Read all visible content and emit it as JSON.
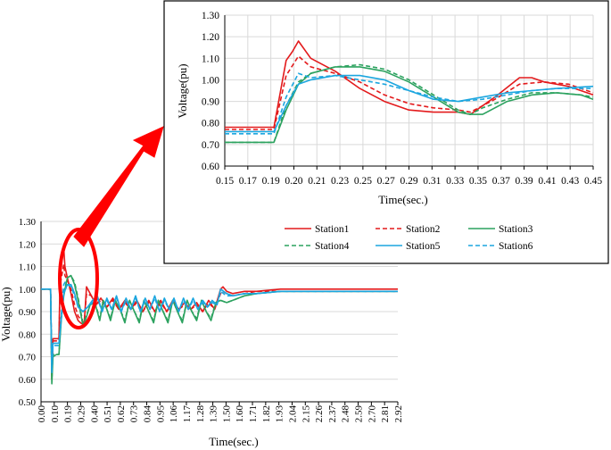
{
  "chart_data": [
    {
      "type": "line",
      "xlabel": "Time(sec.)",
      "ylabel": "Voltage(pu)",
      "xlim": [
        0.0,
        2.98
      ],
      "ylim": [
        0.5,
        1.3
      ],
      "x_tick_labels": [
        "0.00",
        "0.10",
        "0.19",
        "0.29",
        "0.40",
        "0.51",
        "0.62",
        "0.73",
        "0.84",
        "0.95",
        "1.06",
        "1.17",
        "1.28",
        "1.39",
        "1.50",
        "1.60",
        "1.71",
        "1.82",
        "1.93",
        "2.04",
        "2.15",
        "2.26",
        "2.37",
        "2.48",
        "2.59",
        "2.70",
        "2.81",
        "2.92"
      ],
      "y_tick_labels": [
        "0.50",
        "0.60",
        "0.70",
        "0.80",
        "0.90",
        "1.00",
        "1.10",
        "1.20",
        "1.30"
      ],
      "grid": "horizontal",
      "series": [
        {
          "name": "Station1",
          "x": [
            0,
            0.08,
            0.09,
            0.1,
            0.13,
            0.15,
            0.16,
            0.19,
            0.2,
            0.22,
            0.25,
            0.28,
            0.31,
            0.33,
            0.36,
            0.38,
            0.42,
            0.46,
            0.5,
            0.55,
            0.6,
            0.65,
            0.7,
            0.75,
            0.8,
            0.85,
            0.9,
            0.95,
            1.0,
            1.05,
            1.1,
            1.15,
            1.2,
            1.25,
            1.3,
            1.35,
            1.4,
            1.45,
            1.5,
            1.52,
            1.55,
            1.6,
            1.7,
            1.8,
            2.0,
            2.3,
            2.6,
            2.98
          ],
          "y": [
            1.0,
            1.0,
            0.6,
            0.78,
            0.78,
            0.78,
            1.09,
            1.18,
            1.1,
            1.05,
            0.98,
            0.9,
            0.86,
            0.85,
            0.84,
            1.01,
            0.97,
            0.93,
            0.96,
            0.92,
            0.96,
            0.91,
            0.95,
            0.91,
            0.95,
            0.9,
            0.95,
            0.9,
            0.95,
            0.9,
            0.95,
            0.91,
            0.94,
            0.91,
            0.94,
            0.9,
            0.95,
            0.91,
            1.0,
            1.01,
            0.99,
            0.98,
            0.99,
            0.99,
            1.0,
            1.0,
            1.0,
            1.0
          ]
        },
        {
          "name": "Station2",
          "x": [
            0,
            0.08,
            0.09,
            0.1,
            0.13,
            0.15,
            0.16,
            0.19,
            0.2,
            0.22,
            0.25,
            0.28,
            0.31,
            0.34,
            0.36,
            0.38,
            0.42,
            0.46,
            0.5,
            0.55,
            0.6,
            0.65,
            0.7,
            0.75,
            0.8,
            0.85,
            0.9,
            0.95,
            1.0,
            1.05,
            1.1,
            1.15,
            1.2,
            1.25,
            1.3,
            1.35,
            1.4,
            1.45,
            1.5,
            1.52,
            1.55,
            1.6,
            1.7,
            1.8,
            2.0,
            2.3,
            2.6,
            2.98
          ],
          "y": [
            1.0,
            1.0,
            0.62,
            0.77,
            0.77,
            0.77,
            1.02,
            1.11,
            1.06,
            1.04,
            1.0,
            0.93,
            0.88,
            0.86,
            0.85,
            0.98,
            0.97,
            0.93,
            0.95,
            0.92,
            0.95,
            0.91,
            0.94,
            0.91,
            0.94,
            0.9,
            0.94,
            0.9,
            0.94,
            0.9,
            0.94,
            0.91,
            0.93,
            0.91,
            0.93,
            0.9,
            0.94,
            0.91,
            0.98,
            0.99,
            0.98,
            0.97,
            0.98,
            0.99,
            0.99,
            0.99,
            0.99,
            0.99
          ]
        },
        {
          "name": "Station3",
          "x": [
            0,
            0.08,
            0.09,
            0.1,
            0.13,
            0.15,
            0.17,
            0.19,
            0.22,
            0.25,
            0.28,
            0.31,
            0.35,
            0.37,
            0.41,
            0.45,
            0.49,
            0.52,
            0.55,
            0.58,
            0.62,
            0.66,
            0.7,
            0.74,
            0.78,
            0.82,
            0.86,
            0.9,
            0.94,
            0.98,
            1.02,
            1.06,
            1.1,
            1.14,
            1.18,
            1.22,
            1.26,
            1.3,
            1.34,
            1.38,
            1.42,
            1.46,
            1.5,
            1.55,
            1.6,
            1.7,
            1.8,
            2.0,
            2.3,
            2.6,
            2.98
          ],
          "y": [
            1.0,
            1.0,
            0.58,
            0.7,
            0.71,
            0.71,
            0.87,
            0.97,
            1.05,
            1.06,
            1.02,
            0.95,
            0.84,
            0.86,
            0.93,
            0.94,
            0.86,
            0.95,
            0.91,
            0.86,
            0.95,
            0.91,
            0.85,
            0.95,
            0.9,
            0.85,
            0.95,
            0.9,
            0.85,
            0.95,
            0.9,
            0.85,
            0.95,
            0.9,
            0.85,
            0.95,
            0.9,
            0.86,
            0.95,
            0.9,
            0.86,
            0.94,
            0.95,
            0.94,
            0.95,
            0.97,
            0.98,
            0.99,
            0.99,
            0.99,
            0.99
          ]
        },
        {
          "name": "Station4",
          "x": [
            0,
            0.08,
            0.09,
            0.1,
            0.13,
            0.15,
            0.17,
            0.19,
            0.22,
            0.25,
            0.28,
            0.31,
            0.35,
            0.37,
            0.41,
            0.45,
            0.49,
            0.52,
            0.55,
            0.58,
            0.62,
            0.66,
            0.7,
            0.74,
            0.78,
            0.82,
            0.86,
            0.9,
            0.94,
            0.98,
            1.02,
            1.06,
            1.1,
            1.14,
            1.18,
            1.22,
            1.26,
            1.3,
            1.34,
            1.38,
            1.42,
            1.46,
            1.5,
            1.55,
            1.6,
            1.7,
            1.8,
            2.0,
            2.3,
            2.6,
            2.98
          ],
          "y": [
            1.0,
            1.0,
            0.6,
            0.71,
            0.71,
            0.71,
            0.88,
            0.98,
            1.05,
            1.06,
            1.03,
            0.96,
            0.85,
            0.87,
            0.93,
            0.94,
            0.87,
            0.95,
            0.91,
            0.87,
            0.95,
            0.91,
            0.86,
            0.95,
            0.9,
            0.86,
            0.95,
            0.9,
            0.86,
            0.95,
            0.9,
            0.86,
            0.95,
            0.9,
            0.86,
            0.95,
            0.9,
            0.87,
            0.95,
            0.9,
            0.87,
            0.94,
            0.95,
            0.94,
            0.95,
            0.97,
            0.98,
            0.99,
            0.99,
            0.99,
            0.99
          ]
        },
        {
          "name": "Station5",
          "x": [
            0,
            0.08,
            0.09,
            0.1,
            0.13,
            0.15,
            0.17,
            0.19,
            0.22,
            0.25,
            0.28,
            0.31,
            0.35,
            0.39,
            0.43,
            0.47,
            0.51,
            0.55,
            0.59,
            0.63,
            0.67,
            0.71,
            0.75,
            0.79,
            0.83,
            0.87,
            0.91,
            0.95,
            0.99,
            1.03,
            1.07,
            1.11,
            1.15,
            1.19,
            1.23,
            1.27,
            1.31,
            1.35,
            1.39,
            1.43,
            1.47,
            1.5,
            1.55,
            1.6,
            1.7,
            1.8,
            2.0,
            2.3,
            2.6,
            2.98
          ],
          "y": [
            1.0,
            1.0,
            0.64,
            0.76,
            0.76,
            0.76,
            0.87,
            0.98,
            1.02,
            1.02,
            0.98,
            0.92,
            0.9,
            0.92,
            0.95,
            0.97,
            0.9,
            0.96,
            0.91,
            0.97,
            0.9,
            0.96,
            0.91,
            0.97,
            0.9,
            0.96,
            0.91,
            0.97,
            0.9,
            0.96,
            0.91,
            0.96,
            0.9,
            0.96,
            0.91,
            0.96,
            0.91,
            0.95,
            0.92,
            0.95,
            0.93,
            1.0,
            0.98,
            0.97,
            0.98,
            0.98,
            0.99,
            0.99,
            0.99,
            0.99
          ]
        },
        {
          "name": "Station6",
          "x": [
            0,
            0.08,
            0.09,
            0.1,
            0.13,
            0.15,
            0.17,
            0.19,
            0.2,
            0.22,
            0.25,
            0.28,
            0.31,
            0.35,
            0.39,
            0.43,
            0.47,
            0.51,
            0.55,
            0.59,
            0.63,
            0.67,
            0.71,
            0.75,
            0.79,
            0.83,
            0.87,
            0.91,
            0.95,
            0.99,
            1.03,
            1.07,
            1.11,
            1.15,
            1.19,
            1.23,
            1.27,
            1.31,
            1.35,
            1.39,
            1.43,
            1.47,
            1.5,
            1.55,
            1.6,
            1.7,
            1.8,
            2.0,
            2.3,
            2.6,
            2.98
          ],
          "y": [
            1.0,
            1.0,
            0.63,
            0.75,
            0.75,
            0.75,
            0.89,
            1.02,
            1.03,
            1.02,
            1.01,
            0.97,
            0.92,
            0.9,
            0.92,
            0.94,
            0.96,
            0.9,
            0.95,
            0.91,
            0.96,
            0.9,
            0.95,
            0.91,
            0.96,
            0.9,
            0.95,
            0.91,
            0.96,
            0.9,
            0.95,
            0.91,
            0.95,
            0.9,
            0.95,
            0.91,
            0.95,
            0.91,
            0.94,
            0.92,
            0.94,
            0.93,
            0.99,
            0.97,
            0.97,
            0.98,
            0.98,
            0.99,
            0.99,
            0.99,
            0.99
          ]
        }
      ]
    },
    {
      "type": "line",
      "xlabel": "Time(sec.)",
      "ylabel": "Voltage(pu)",
      "xlim": [
        0.15,
        0.45
      ],
      "ylim": [
        0.6,
        1.3
      ],
      "x_tick_labels": [
        "0.15",
        "0.17",
        "0.19",
        "0.20",
        "0.21",
        "0.23",
        "0.25",
        "0.27",
        "0.29",
        "0.31",
        "0.33",
        "0.35",
        "0.37",
        "0.39",
        "0.41",
        "0.43",
        "0.45"
      ],
      "y_tick_labels": [
        "0.60",
        "0.70",
        "0.80",
        "0.90",
        "1.00",
        "1.10",
        "1.20",
        "1.30"
      ],
      "grid": "both",
      "legend_position": "bottom",
      "series": [
        {
          "name": "Station1",
          "x": [
            0.15,
            0.19,
            0.2,
            0.205,
            0.21,
            0.22,
            0.24,
            0.26,
            0.28,
            0.3,
            0.32,
            0.34,
            0.35,
            0.37,
            0.39,
            0.4,
            0.41,
            0.43,
            0.45
          ],
          "y": [
            0.78,
            0.78,
            1.09,
            1.13,
            1.18,
            1.1,
            1.04,
            0.96,
            0.9,
            0.86,
            0.85,
            0.85,
            0.84,
            0.92,
            1.01,
            1.01,
            0.99,
            0.97,
            0.93
          ]
        },
        {
          "name": "Station2",
          "x": [
            0.15,
            0.19,
            0.2,
            0.21,
            0.22,
            0.24,
            0.26,
            0.28,
            0.3,
            0.32,
            0.34,
            0.35,
            0.37,
            0.39,
            0.41,
            0.43,
            0.45
          ],
          "y": [
            0.77,
            0.77,
            1.02,
            1.11,
            1.06,
            1.03,
            0.99,
            0.93,
            0.89,
            0.87,
            0.86,
            0.85,
            0.91,
            0.98,
            0.99,
            0.98,
            0.94
          ]
        },
        {
          "name": "Station3",
          "x": [
            0.15,
            0.19,
            0.2,
            0.21,
            0.22,
            0.24,
            0.26,
            0.28,
            0.3,
            0.32,
            0.34,
            0.35,
            0.36,
            0.38,
            0.4,
            0.42,
            0.44,
            0.45
          ],
          "y": [
            0.71,
            0.71,
            0.86,
            0.98,
            1.03,
            1.06,
            1.06,
            1.04,
            0.99,
            0.92,
            0.85,
            0.84,
            0.84,
            0.9,
            0.93,
            0.94,
            0.93,
            0.91
          ]
        },
        {
          "name": "Station4",
          "x": [
            0.15,
            0.19,
            0.2,
            0.21,
            0.22,
            0.24,
            0.26,
            0.28,
            0.3,
            0.32,
            0.34,
            0.35,
            0.36,
            0.38,
            0.4,
            0.42,
            0.44,
            0.45
          ],
          "y": [
            0.71,
            0.71,
            0.88,
            0.99,
            1.03,
            1.06,
            1.07,
            1.05,
            1.0,
            0.93,
            0.86,
            0.84,
            0.87,
            0.91,
            0.94,
            0.94,
            0.93,
            0.92
          ]
        },
        {
          "name": "Station5",
          "x": [
            0.15,
            0.19,
            0.2,
            0.21,
            0.22,
            0.24,
            0.26,
            0.28,
            0.3,
            0.32,
            0.34,
            0.36,
            0.38,
            0.4,
            0.42,
            0.45
          ],
          "y": [
            0.76,
            0.76,
            0.88,
            0.98,
            1.0,
            1.02,
            1.02,
            1.0,
            0.95,
            0.91,
            0.9,
            0.92,
            0.94,
            0.95,
            0.96,
            0.97
          ]
        },
        {
          "name": "Station6",
          "x": [
            0.15,
            0.19,
            0.2,
            0.21,
            0.22,
            0.24,
            0.26,
            0.28,
            0.3,
            0.32,
            0.34,
            0.36,
            0.38,
            0.4,
            0.42,
            0.45
          ],
          "y": [
            0.75,
            0.75,
            0.92,
            1.03,
            1.01,
            1.02,
            1.0,
            0.98,
            0.95,
            0.92,
            0.9,
            0.91,
            0.93,
            0.95,
            0.96,
            0.96
          ]
        }
      ]
    }
  ],
  "colors": {
    "Station1": "#e31a1c",
    "Station2": "#e31a1c",
    "Station3": "#2ca25f",
    "Station4": "#2ca25f",
    "Station5": "#1ca6df",
    "Station6": "#1ca6df",
    "highlight": "#ff0000",
    "grid": "#d9d9d9"
  },
  "dashed": [
    "Station2",
    "Station4",
    "Station6"
  ]
}
